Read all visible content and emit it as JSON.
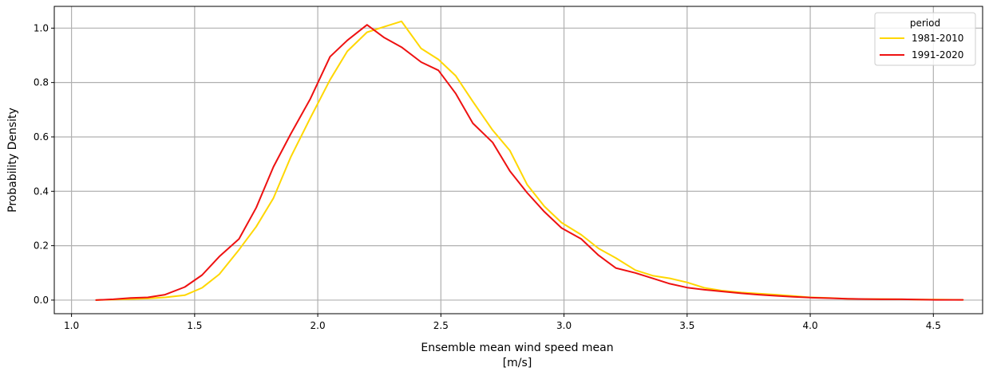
{
  "chart_data": {
    "type": "line",
    "title": "",
    "xlabel": "Ensemble mean wind speed mean",
    "xlabel_unit": "[m/s]",
    "ylabel": "Probability Density",
    "xlim": [
      0.93,
      4.7
    ],
    "ylim": [
      -0.05,
      1.08
    ],
    "xticks": [
      1.0,
      1.5,
      2.0,
      2.5,
      3.0,
      3.5,
      4.0,
      4.5
    ],
    "xtick_labels": [
      "1.0",
      "1.5",
      "2.0",
      "2.5",
      "3.0",
      "3.5",
      "4.0",
      "4.5"
    ],
    "yticks": [
      0.0,
      0.2,
      0.4,
      0.6,
      0.8,
      1.0
    ],
    "ytick_labels": [
      "0.0",
      "0.2",
      "0.4",
      "0.6",
      "0.8",
      "1.0"
    ],
    "grid": true,
    "legend": {
      "title": "period",
      "placement": "top-right"
    },
    "series": [
      {
        "name": "1981-2010",
        "color": "#FFD700",
        "x": [
          1.1,
          1.17,
          1.24,
          1.31,
          1.38,
          1.46,
          1.53,
          1.6,
          1.68,
          1.75,
          1.82,
          1.89,
          1.97,
          2.05,
          2.12,
          2.2,
          2.27,
          2.34,
          2.42,
          2.49,
          2.56,
          2.63,
          2.71,
          2.78,
          2.85,
          2.92,
          2.99,
          3.07,
          3.14,
          3.21,
          3.29,
          3.36,
          3.43,
          3.5,
          3.57,
          3.64,
          3.72,
          3.79,
          3.86,
          3.93,
          4.0,
          4.08,
          4.15,
          4.22,
          4.29,
          4.37,
          4.44,
          4.51,
          4.62
        ],
        "y": [
          0.0,
          0.002,
          0.004,
          0.006,
          0.01,
          0.018,
          0.045,
          0.095,
          0.185,
          0.27,
          0.375,
          0.525,
          0.67,
          0.81,
          0.915,
          0.985,
          1.005,
          1.025,
          0.925,
          0.885,
          0.825,
          0.73,
          0.625,
          0.55,
          0.425,
          0.345,
          0.285,
          0.24,
          0.19,
          0.155,
          0.11,
          0.09,
          0.08,
          0.065,
          0.045,
          0.035,
          0.028,
          0.024,
          0.02,
          0.015,
          0.01,
          0.008,
          0.005,
          0.004,
          0.004,
          0.003,
          0.002,
          0.002,
          0.001
        ]
      },
      {
        "name": "1991-2020",
        "color": "#EE1111",
        "x": [
          1.1,
          1.17,
          1.24,
          1.31,
          1.38,
          1.46,
          1.53,
          1.6,
          1.68,
          1.75,
          1.82,
          1.89,
          1.97,
          2.05,
          2.12,
          2.2,
          2.27,
          2.34,
          2.42,
          2.49,
          2.56,
          2.63,
          2.71,
          2.78,
          2.85,
          2.92,
          2.99,
          3.07,
          3.14,
          3.21,
          3.29,
          3.36,
          3.43,
          3.5,
          3.57,
          3.64,
          3.72,
          3.79,
          3.86,
          3.93,
          4.0,
          4.08,
          4.15,
          4.22,
          4.29,
          4.37,
          4.44,
          4.51,
          4.62
        ],
        "y": [
          0.0,
          0.003,
          0.008,
          0.01,
          0.02,
          0.048,
          0.092,
          0.16,
          0.225,
          0.34,
          0.49,
          0.61,
          0.74,
          0.895,
          0.955,
          1.012,
          0.965,
          0.93,
          0.875,
          0.845,
          0.76,
          0.65,
          0.58,
          0.475,
          0.395,
          0.325,
          0.265,
          0.225,
          0.165,
          0.118,
          0.1,
          0.08,
          0.06,
          0.046,
          0.038,
          0.032,
          0.025,
          0.02,
          0.016,
          0.012,
          0.009,
          0.007,
          0.005,
          0.004,
          0.003,
          0.003,
          0.002,
          0.001,
          0.001
        ]
      }
    ]
  }
}
